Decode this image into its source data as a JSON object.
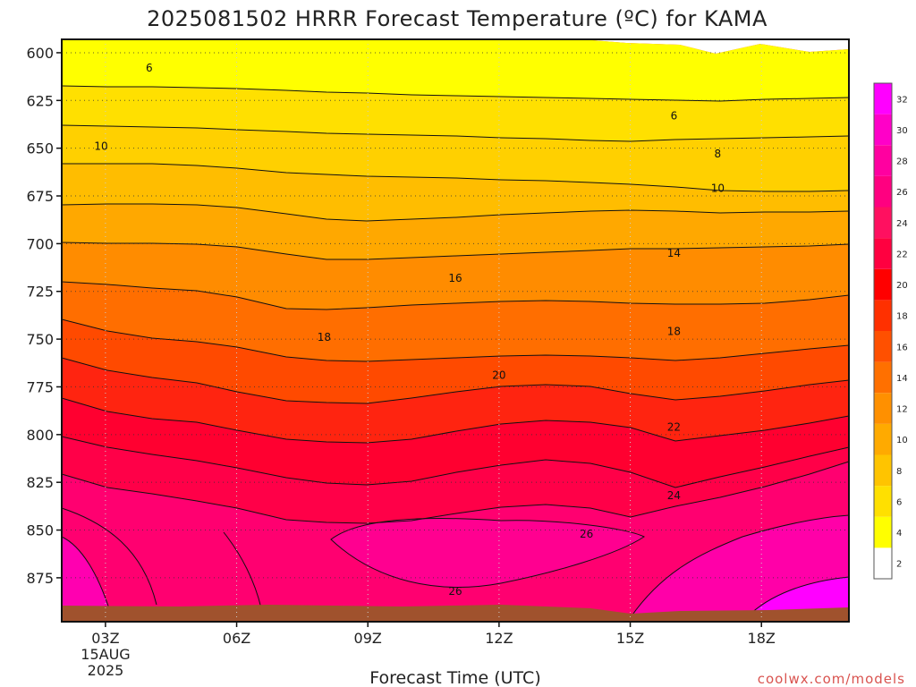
{
  "chart_data": {
    "type": "contour",
    "title": "2025081502 HRRR Forecast Temperature (ºC) for KAMA",
    "xlabel": "Forecast Time (UTC)",
    "x_ticks": [
      "03Z",
      "06Z",
      "09Z",
      "12Z",
      "15Z",
      "18Z"
    ],
    "x_date_label": [
      "15AUG",
      "2025"
    ],
    "x_range_hours": [
      2,
      20
    ],
    "y_ticks": [
      600,
      625,
      650,
      675,
      700,
      725,
      750,
      775,
      800,
      825,
      850,
      875
    ],
    "y_range_hPa": [
      593,
      898
    ],
    "colorbar": {
      "levels": [
        2,
        4,
        6,
        8,
        10,
        12,
        14,
        16,
        18,
        20,
        22,
        24,
        26,
        28,
        30,
        32
      ],
      "colors": [
        "#ffffff",
        "#ffff00",
        "#ffe000",
        "#ffc400",
        "#ffaa00",
        "#ff9000",
        "#ff7000",
        "#ff5000",
        "#ff3000",
        "#ff0000",
        "#ff0040",
        "#ff1060",
        "#ff0080",
        "#ff00a0",
        "#ff00c8",
        "#ff00ff"
      ]
    },
    "contour_labels": [
      {
        "value": "6",
        "hour": 4.0,
        "p": 608
      },
      {
        "value": "6",
        "hour": 16.0,
        "p": 633
      },
      {
        "value": "8",
        "hour": 17.0,
        "p": 653
      },
      {
        "value": "10",
        "hour": 2.9,
        "p": 649
      },
      {
        "value": "10",
        "hour": 17.0,
        "p": 671
      },
      {
        "value": "14",
        "hour": 16.0,
        "p": 705
      },
      {
        "value": "16",
        "hour": 11.0,
        "p": 718
      },
      {
        "value": "18",
        "hour": 8.0,
        "p": 749
      },
      {
        "value": "18",
        "hour": 16.0,
        "p": 746
      },
      {
        "value": "20",
        "hour": 12.0,
        "p": 769
      },
      {
        "value": "22",
        "hour": 16.0,
        "p": 796
      },
      {
        "value": "24",
        "hour": 16.0,
        "p": 832
      },
      {
        "value": "26",
        "hour": 14.0,
        "p": 852
      },
      {
        "value": "26",
        "hour": 11.0,
        "p": 882
      }
    ],
    "surface_color": "#a0522d",
    "grid": "dotted"
  },
  "watermark": "coolwx.com/models"
}
